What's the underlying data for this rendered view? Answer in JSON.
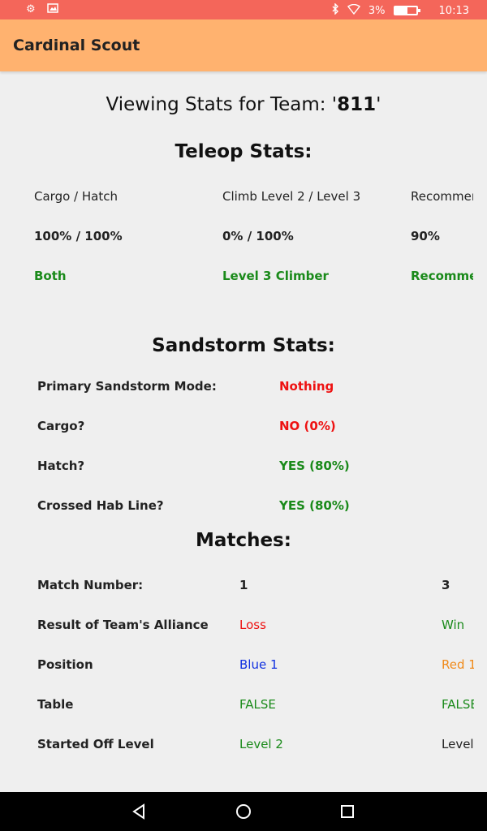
{
  "status_bar": {
    "battery_pct": "3%",
    "time": "10:13",
    "icons": [
      "settings-icon",
      "image-icon",
      "bluetooth-icon",
      "wifi-icon",
      "battery-icon"
    ]
  },
  "app_bar": {
    "title": "Cardinal Scout"
  },
  "team_heading": {
    "prefix": "Viewing Stats for Team: '",
    "team": "811",
    "suffix": "'"
  },
  "teleop": {
    "title": "Teleop Stats:",
    "columns": [
      {
        "label": "Cargo / Hatch",
        "value": "100% / 100%",
        "verdict": "Both"
      },
      {
        "label": "Climb Level 2 / Level 3",
        "value": "0% / 100%",
        "verdict": "Level 3 Climber"
      },
      {
        "label": "Recommended",
        "value": "90%",
        "verdict": "Recommended"
      }
    ]
  },
  "sandstorm": {
    "title": "Sandstorm Stats:",
    "rows": [
      {
        "label": "Primary Sandstorm Mode:",
        "value": "Nothing",
        "color": "#e11111"
      },
      {
        "label": "Cargo?",
        "value": "NO (0%)",
        "color": "#e11111"
      },
      {
        "label": "Hatch?",
        "value": "YES (80%)",
        "color": "#1a8a1a"
      },
      {
        "label": "Crossed Hab Line?",
        "value": "YES (80%)",
        "color": "#1a8a1a"
      }
    ]
  },
  "matches": {
    "title": "Matches:",
    "rows": [
      {
        "label": "Match Number:",
        "m1": "1",
        "m2": "3"
      },
      {
        "label": "Result of Team's Alliance",
        "m1": "Loss",
        "m2": "Win"
      },
      {
        "label": "Position",
        "m1": "Blue 1",
        "m2": "Red 1"
      },
      {
        "label": "Table",
        "m1": "FALSE",
        "m2": "FALSE"
      },
      {
        "label": "Started Off Level",
        "m1": "Level 2",
        "m2": "Level"
      }
    ]
  },
  "nav_bar": {
    "icons": [
      "back-icon",
      "home-icon",
      "recents-icon"
    ]
  }
}
